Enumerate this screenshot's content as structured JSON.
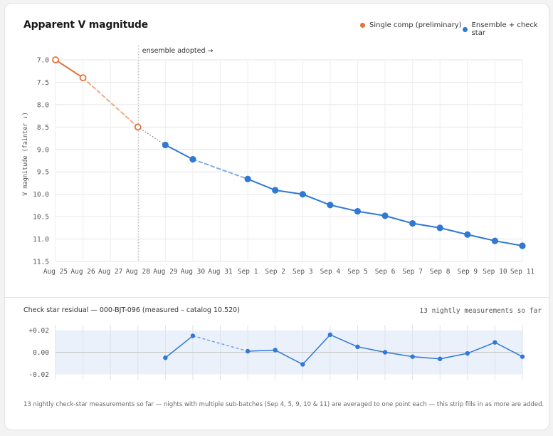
{
  "title": "Apparent V magnitude",
  "legend": [
    {
      "label": "Single comp (preliminary)",
      "color": "#e8703a"
    },
    {
      "label": "Ensemble + check star",
      "color": "#2f78d6"
    }
  ],
  "chart_data": [
    {
      "type": "line",
      "title": "Apparent V magnitude",
      "ylabel": "V magnitude (fainter ↓)",
      "y_inverted": true,
      "ylim": [
        7.0,
        11.5
      ],
      "yticks": [
        "7.0",
        "7.5",
        "8.0",
        "8.5",
        "9.0",
        "9.5",
        "10.0",
        "10.5",
        "11.0",
        "11.5"
      ],
      "xticks": [
        "Aug 25",
        "Aug 26",
        "Aug 27",
        "Aug 28",
        "Aug 29",
        "Aug 30",
        "Aug 31",
        "Sep 1",
        "Sep 2",
        "Sep 3",
        "Sep 4",
        "Sep 5",
        "Sep 6",
        "Sep 7",
        "Sep 8",
        "Sep 9",
        "Sep 10",
        "Sep 11"
      ],
      "annotation": {
        "text": "ensemble adopted →",
        "x": "Aug 28"
      },
      "series": [
        {
          "name": "Single comp (preliminary)",
          "color": "#e8703a",
          "points": [
            {
              "x": "Aug 25",
              "y": 7.0
            },
            {
              "x": "Aug 26",
              "y": 7.4
            },
            {
              "x": "Aug 28",
              "y": 8.5
            }
          ]
        },
        {
          "name": "Ensemble + check star",
          "color": "#2f78d6",
          "points": [
            {
              "x": "Aug 29",
              "y": 8.9
            },
            {
              "x": "Aug 30",
              "y": 9.22
            },
            {
              "x": "Sep 1",
              "y": 9.66
            },
            {
              "x": "Sep 2",
              "y": 9.91
            },
            {
              "x": "Sep 3",
              "y": 10.0
            },
            {
              "x": "Sep 4",
              "y": 10.24
            },
            {
              "x": "Sep 5",
              "y": 10.38
            },
            {
              "x": "Sep 6",
              "y": 10.48
            },
            {
              "x": "Sep 7",
              "y": 10.65
            },
            {
              "x": "Sep 8",
              "y": 10.75
            },
            {
              "x": "Sep 9",
              "y": 10.9
            },
            {
              "x": "Sep 10",
              "y": 11.04
            },
            {
              "x": "Sep 11",
              "y": 11.15
            }
          ]
        }
      ]
    },
    {
      "type": "line",
      "title": "Check star residual — 000-BJT-096 (measured – catalog 10.520)",
      "ylim": [
        -0.025,
        0.025
      ],
      "yticks": [
        "+0.02",
        "0.00",
        "-0.02"
      ],
      "band": [
        -0.02,
        0.02
      ],
      "color": "#2f78d6",
      "points": [
        {
          "x": "Aug 29",
          "y": -0.005
        },
        {
          "x": "Aug 30",
          "y": 0.015
        },
        {
          "x": "Sep 1",
          "y": 0.001
        },
        {
          "x": "Sep 2",
          "y": 0.002
        },
        {
          "x": "Sep 3",
          "y": -0.011
        },
        {
          "x": "Sep 4",
          "y": 0.016
        },
        {
          "x": "Sep 5",
          "y": 0.005
        },
        {
          "x": "Sep 6",
          "y": 0.0
        },
        {
          "x": "Sep 7",
          "y": -0.004
        },
        {
          "x": "Sep 8",
          "y": -0.006
        },
        {
          "x": "Sep 9",
          "y": -0.001
        },
        {
          "x": "Sep 10",
          "y": 0.009
        },
        {
          "x": "Sep 11",
          "y": -0.004
        }
      ]
    }
  ],
  "residual": {
    "title": "Check star residual — 000-BJT-096 (measured – catalog 10.520)",
    "count": "13 nightly measurements so far"
  },
  "footnote": "13 nightly check-star measurements so far — nights with multiple sub-batches (Sep 4, 5, 9, 10 & 11) are averaged to one point each — this strip fills in as more are added."
}
